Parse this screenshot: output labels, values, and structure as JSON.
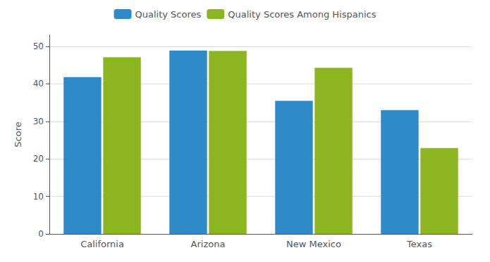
{
  "chart_data": {
    "type": "bar",
    "categories": [
      "California",
      "Arizona",
      "New Mexico",
      "Texas"
    ],
    "series": [
      {
        "name": "Quality Scores",
        "color": "#2E8BC8",
        "values": [
          41.8,
          48.9,
          35.5,
          33.0
        ]
      },
      {
        "name": "Quality Scores Among Hispanics",
        "color": "#8DB520",
        "values": [
          47.1,
          48.8,
          44.3,
          22.9
        ]
      }
    ],
    "ylabel": "Score",
    "ylim": [
      0,
      53
    ],
    "yticks": [
      0,
      10,
      20,
      30,
      40,
      50
    ],
    "grid": true,
    "legend": "top"
  }
}
